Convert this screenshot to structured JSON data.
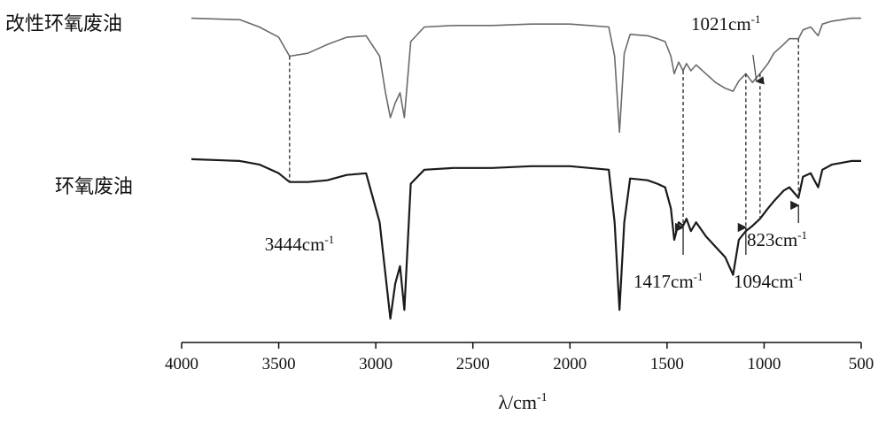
{
  "chart_data": {
    "type": "line",
    "title": "",
    "xlabel": "λ/cm⁻¹",
    "ylabel": "",
    "xlim": [
      4000,
      500
    ],
    "x_reversed": true,
    "x_ticks": [
      4000,
      3500,
      3000,
      2500,
      2000,
      1500,
      1000,
      500
    ],
    "grid": false,
    "legend": "none",
    "series": [
      {
        "name": "改性环氧废油",
        "color": "#6a6a6a",
        "x": [
          3950,
          3700,
          3600,
          3500,
          3444,
          3350,
          3250,
          3150,
          3050,
          2980,
          2950,
          2925,
          2900,
          2875,
          2853,
          2820,
          2750,
          2600,
          2400,
          2200,
          2000,
          1900,
          1800,
          1770,
          1745,
          1720,
          1690,
          1600,
          1550,
          1510,
          1480,
          1463,
          1440,
          1417,
          1400,
          1377,
          1350,
          1300,
          1250,
          1200,
          1160,
          1130,
          1094,
          1060,
          1021,
          980,
          950,
          900,
          870,
          823,
          800,
          760,
          722,
          700,
          650,
          600,
          550,
          500
        ],
        "y": [
          0.96,
          0.95,
          0.9,
          0.83,
          0.7,
          0.72,
          0.78,
          0.83,
          0.84,
          0.7,
          0.45,
          0.28,
          0.38,
          0.45,
          0.28,
          0.8,
          0.9,
          0.91,
          0.91,
          0.92,
          0.92,
          0.91,
          0.9,
          0.7,
          0.18,
          0.72,
          0.85,
          0.84,
          0.82,
          0.8,
          0.7,
          0.58,
          0.66,
          0.6,
          0.65,
          0.6,
          0.64,
          0.58,
          0.52,
          0.48,
          0.46,
          0.53,
          0.58,
          0.52,
          0.58,
          0.65,
          0.72,
          0.78,
          0.82,
          0.82,
          0.88,
          0.9,
          0.84,
          0.92,
          0.94,
          0.95,
          0.96,
          0.96
        ]
      },
      {
        "name": "环氧废油",
        "color": "#1a1a1a",
        "x": [
          3950,
          3700,
          3600,
          3500,
          3444,
          3350,
          3250,
          3150,
          3050,
          2980,
          2950,
          2925,
          2900,
          2875,
          2853,
          2820,
          2750,
          2600,
          2400,
          2200,
          2000,
          1900,
          1800,
          1770,
          1745,
          1720,
          1690,
          1600,
          1550,
          1510,
          1480,
          1463,
          1440,
          1417,
          1400,
          1377,
          1350,
          1300,
          1250,
          1200,
          1160,
          1130,
          1094,
          1060,
          1021,
          980,
          950,
          900,
          870,
          823,
          800,
          760,
          722,
          700,
          650,
          600,
          550,
          500
        ],
        "y": [
          0.96,
          0.95,
          0.93,
          0.88,
          0.83,
          0.83,
          0.84,
          0.87,
          0.88,
          0.6,
          0.3,
          0.05,
          0.25,
          0.35,
          0.1,
          0.82,
          0.9,
          0.91,
          0.91,
          0.92,
          0.92,
          0.91,
          0.9,
          0.6,
          0.1,
          0.6,
          0.85,
          0.84,
          0.82,
          0.8,
          0.68,
          0.5,
          0.6,
          0.58,
          0.62,
          0.55,
          0.6,
          0.52,
          0.46,
          0.4,
          0.3,
          0.5,
          0.55,
          0.58,
          0.62,
          0.68,
          0.72,
          0.78,
          0.8,
          0.74,
          0.86,
          0.88,
          0.8,
          0.9,
          0.93,
          0.94,
          0.95,
          0.95
        ]
      }
    ],
    "series_labels": [
      "改性环氧废油",
      "环氧废油"
    ],
    "annotations": [
      {
        "text": "3444cm",
        "sup": "-1",
        "x": 3444,
        "target_series": 1
      },
      {
        "text": "1417cm",
        "sup": "-1",
        "x": 1417,
        "target_series": 1
      },
      {
        "text": "1094cm",
        "sup": "-1",
        "x": 1094,
        "target_series": 1
      },
      {
        "text": "823cm",
        "sup": "-1",
        "x": 823,
        "target_series": 1
      },
      {
        "text": "1021cm",
        "sup": "-1",
        "x": 1021,
        "target_series": 0
      }
    ]
  }
}
